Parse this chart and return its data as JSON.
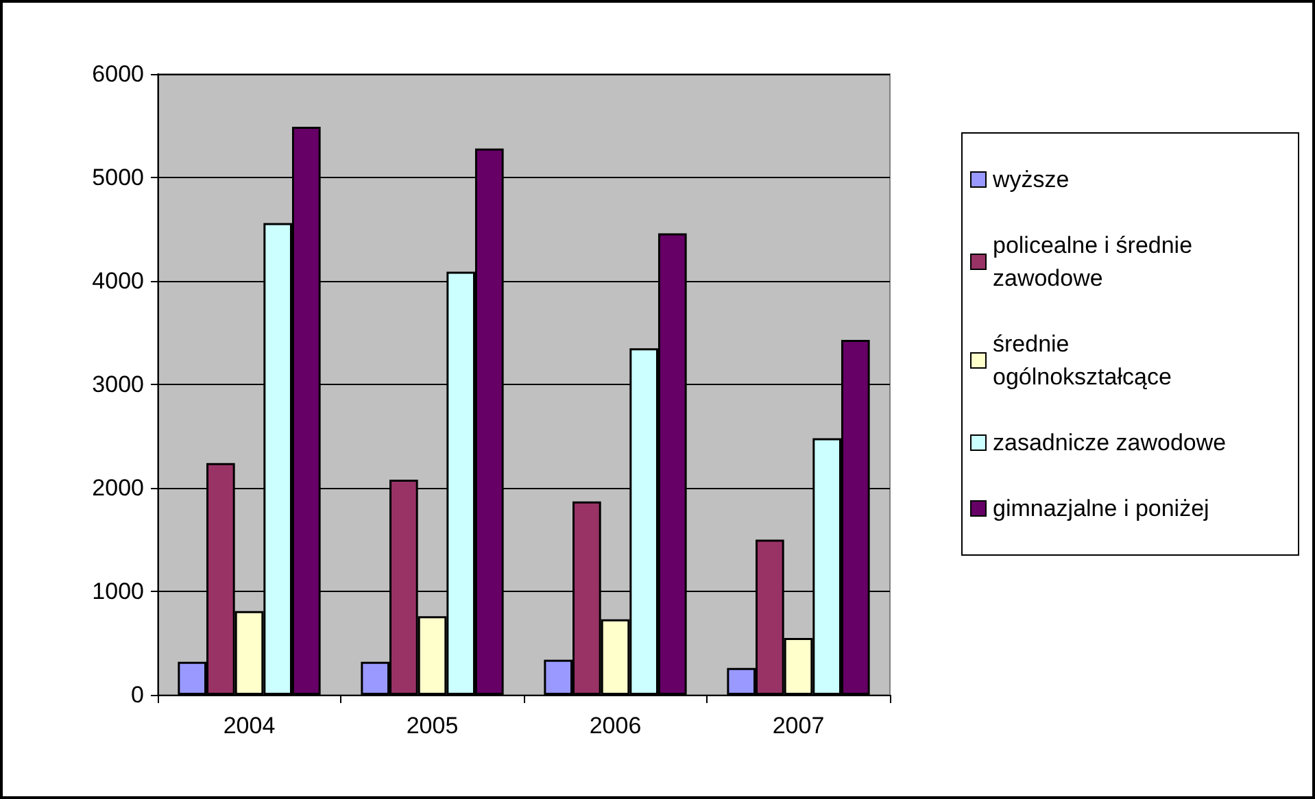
{
  "chart_data": {
    "type": "bar",
    "categories": [
      "2004",
      "2005",
      "2006",
      "2007"
    ],
    "series": [
      {
        "name": "wyższe",
        "color": "#9999ff",
        "values": [
          320,
          320,
          340,
          260
        ]
      },
      {
        "name": "policealne i średnie zawodowe",
        "color": "#993366",
        "values": [
          2240,
          2080,
          1870,
          1500
        ]
      },
      {
        "name": "średnie ogólnokształcące",
        "color": "#ffffcc",
        "values": [
          810,
          760,
          730,
          550
        ]
      },
      {
        "name": "zasadnicze zawodowe",
        "color": "#ccffff",
        "values": [
          4560,
          4090,
          3350,
          2480
        ]
      },
      {
        "name": "gimnazjalne i poniżej",
        "color": "#660066",
        "values": [
          5490,
          5280,
          4460,
          3430
        ]
      }
    ],
    "ylim": [
      0,
      6000
    ],
    "yticks": [
      0,
      1000,
      2000,
      3000,
      4000,
      5000,
      6000
    ],
    "grid": "y",
    "legend": "right"
  }
}
